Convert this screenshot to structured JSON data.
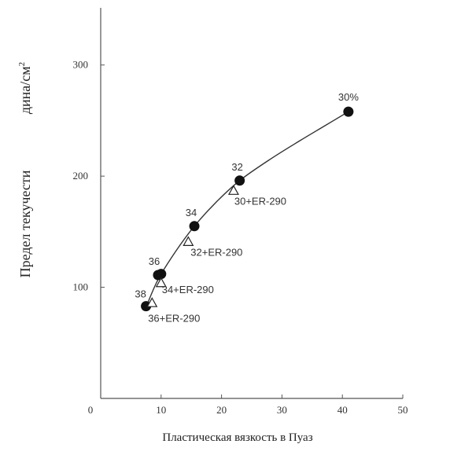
{
  "chart_data": {
    "type": "scatter",
    "title": "",
    "xlabel": "Пластическая вязкость в Пуаз",
    "ylabel": "Предел текучести",
    "ylabel_unit_base": "дина/см",
    "ylabel_unit_exp": "2",
    "xlim": [
      0,
      50
    ],
    "ylim": [
      0,
      350
    ],
    "x_ticks": [
      0,
      10,
      20,
      30,
      40,
      50
    ],
    "y_ticks": [
      100,
      200,
      300
    ],
    "grid": false,
    "series": [
      {
        "marker": "filled-circle",
        "points": [
          {
            "x": 7.5,
            "y": 83,
            "label": "38"
          },
          {
            "x": 9.5,
            "y": 111,
            "label": "36"
          },
          {
            "x": 10,
            "y": 112,
            "label": ""
          },
          {
            "x": 15.5,
            "y": 155,
            "label": "34"
          },
          {
            "x": 23,
            "y": 196,
            "label": "32"
          },
          {
            "x": 41,
            "y": 258,
            "label": "30%"
          }
        ]
      },
      {
        "marker": "open-triangle",
        "points": [
          {
            "x": 8.5,
            "y": 86,
            "label": "36+ER-290"
          },
          {
            "x": 10,
            "y": 104,
            "label": "34+ER-290"
          },
          {
            "x": 14.5,
            "y": 141,
            "label": "32+ER-290"
          },
          {
            "x": 22,
            "y": 187,
            "label": "30+ER-290"
          }
        ]
      }
    ],
    "trend_curve": {
      "x": [
        7.5,
        9.5,
        12.5,
        15.5,
        19,
        23,
        28,
        33,
        37,
        41
      ],
      "y": [
        82,
        107,
        133,
        155,
        176,
        196,
        215,
        232,
        245,
        258
      ]
    }
  }
}
